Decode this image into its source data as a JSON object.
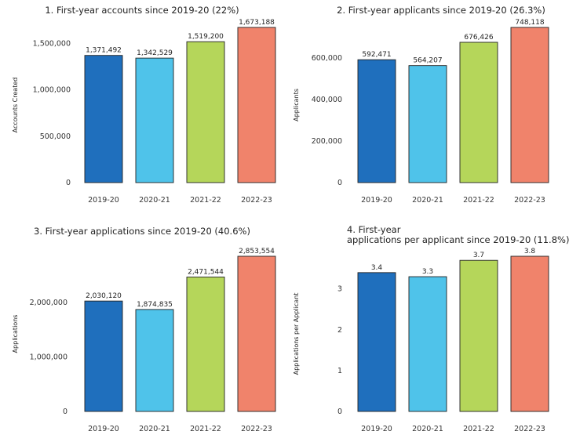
{
  "chart_data": [
    {
      "type": "bar",
      "title": "1. First-year accounts since 2019-20 (22%)",
      "ylabel": "Accounts Created",
      "categories": [
        "2019-20",
        "2020-21",
        "2021-22",
        "2022-23"
      ],
      "values": [
        1371492,
        1342529,
        1519200,
        1673188
      ],
      "value_labels": [
        "1,371,492",
        "1,342,529",
        "1,519,200",
        "1,673,188"
      ],
      "yticks": [
        0,
        500000,
        1000000,
        1500000
      ],
      "ytick_labels": [
        "0",
        "500,000",
        "1,000,000",
        "1,500,000"
      ],
      "ylim": [
        0,
        1673188
      ],
      "colors": [
        "#1f6fbd",
        "#4fc3ea",
        "#b5d65a",
        "#f0836b"
      ]
    },
    {
      "type": "bar",
      "title": "2. First-year applicants since 2019-20 (26.3%)",
      "ylabel": "Applicants",
      "categories": [
        "2019-20",
        "2020-21",
        "2021-22",
        "2022-23"
      ],
      "values": [
        592471,
        564207,
        676426,
        748118
      ],
      "value_labels": [
        "592,471",
        "564,207",
        "676,426",
        "748,118"
      ],
      "yticks": [
        0,
        200000,
        400000,
        600000
      ],
      "ytick_labels": [
        "0",
        "200,000",
        "400,000",
        "600,000"
      ],
      "ylim": [
        0,
        748118
      ],
      "colors": [
        "#1f6fbd",
        "#4fc3ea",
        "#b5d65a",
        "#f0836b"
      ]
    },
    {
      "type": "bar",
      "title": "3. First-year applications since 2019-20 (40.6%)",
      "ylabel": "Applications",
      "categories": [
        "2019-20",
        "2020-21",
        "2021-22",
        "2022-23"
      ],
      "values": [
        2030120,
        1874835,
        2471544,
        2853554
      ],
      "value_labels": [
        "2,030,120",
        "1,874,835",
        "2,471,544",
        "2,853,554"
      ],
      "yticks": [
        0,
        1000000,
        2000000
      ],
      "ytick_labels": [
        "0",
        "1,000,000",
        "2,000,000"
      ],
      "ylim": [
        0,
        2853554
      ],
      "colors": [
        "#1f6fbd",
        "#4fc3ea",
        "#b5d65a",
        "#f0836b"
      ]
    },
    {
      "type": "bar",
      "title": "4. First-year applications per applicant since 2019-20 (11.8%)",
      "title_lines": [
        "4. First-year",
        "applications per applicant since 2019-20 (11.8%)"
      ],
      "ylabel": "Applications per Applicant",
      "categories": [
        "2019-20",
        "2020-21",
        "2021-22",
        "2022-23"
      ],
      "values": [
        3.4,
        3.3,
        3.7,
        3.8
      ],
      "value_labels": [
        "3.4",
        "3.3",
        "3.7",
        "3.8"
      ],
      "yticks": [
        0,
        1,
        2,
        3
      ],
      "ytick_labels": [
        "0",
        "1",
        "2",
        "3"
      ],
      "ylim": [
        0,
        3.8
      ],
      "colors": [
        "#1f6fbd",
        "#4fc3ea",
        "#b5d65a",
        "#f0836b"
      ]
    }
  ]
}
